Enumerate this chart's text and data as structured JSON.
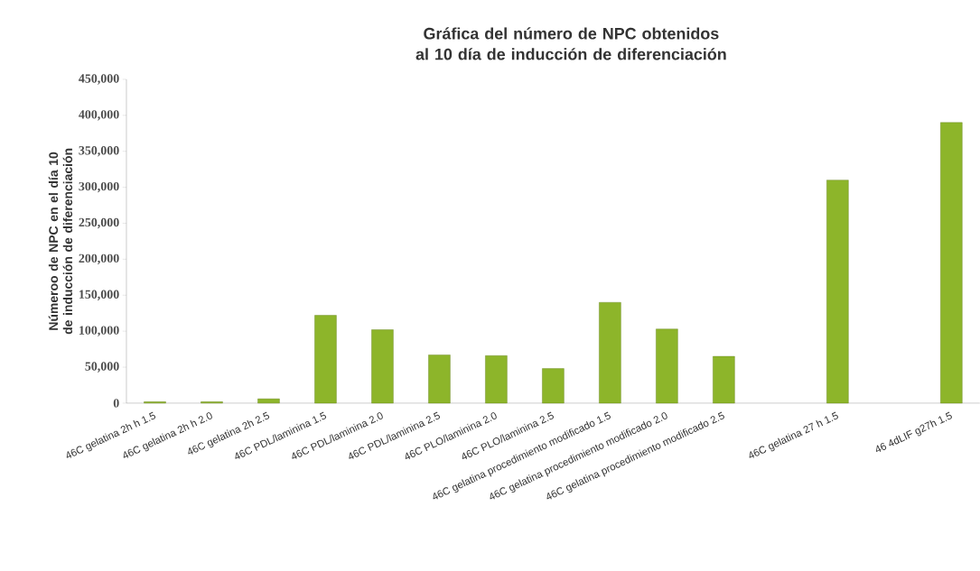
{
  "chart_data": {
    "type": "bar",
    "title": "Gráfica del número de NPC obtenidos al 10 día de inducción de diferenciación",
    "ylabel": "Númeroo de NPC en el  día 10 de inducción de diferenciación",
    "categories": [
      "46C gelatina 2h h 1.5",
      "46C gelatina 2h h  2.0",
      "46C gelatina 2h 2.5",
      "46C PDL/laminina 1.5",
      "46C PDL/laminina 2.0",
      "46C PDL/laminina 2.5",
      "46C PLO/laminina 2.0",
      "46C PLO/laminina 2.5",
      "46C gelatina procedimiento modificado 1.5",
      "46C gelatina procedimiento modificado 2.0",
      "46C gelatina procedimiento modificado 2.5",
      null,
      "46C gelatina 27 h 1.5",
      null,
      "46 4dLIF g27h 1.5"
    ],
    "values": [
      2000,
      2000,
      6000,
      122000,
      102000,
      67000,
      66000,
      48000,
      140000,
      103000,
      65000,
      null,
      310000,
      null,
      390000
    ],
    "color": "#8db52a",
    "ylim": [
      0,
      450000
    ],
    "yticks": [
      0,
      {
        "value": 50000,
        "label": "50,000"
      },
      {
        "value": 100000,
        "label": "100,000"
      },
      {
        "value": 150000,
        "label": "150,000"
      },
      {
        "value": 200000,
        "label": "200,000"
      },
      {
        "value": 250000,
        "label": "250,000"
      },
      {
        "value": 300000,
        "label": "300,000"
      },
      {
        "value": 350000,
        "label": "350,000"
      },
      {
        "value": 400000,
        "label": "400,000"
      },
      {
        "value": 450000,
        "label": "450,000"
      }
    ],
    "grid": false
  }
}
